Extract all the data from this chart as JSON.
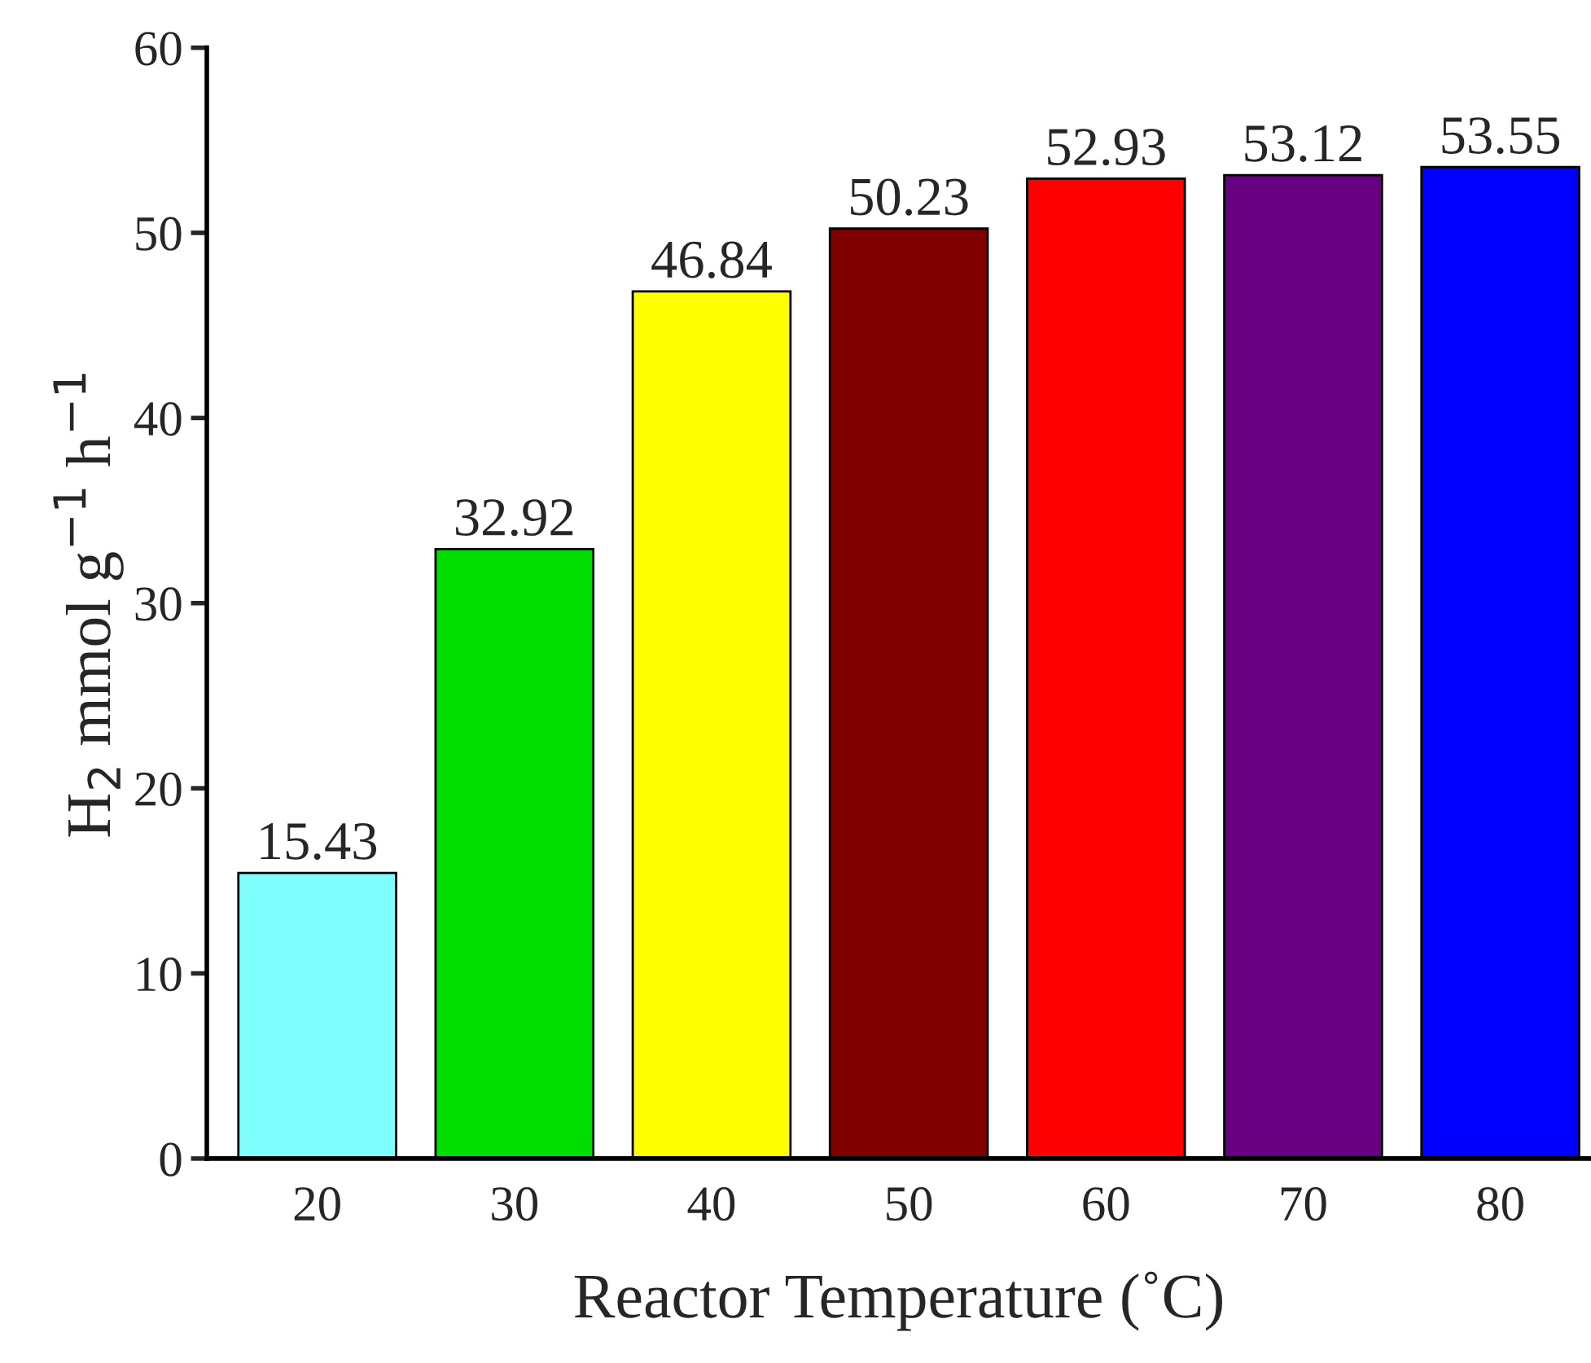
{
  "chart_data": {
    "type": "bar",
    "xlabel": "Reactor Temperature (˚C)",
    "ylabel": "H$_{2}$ mmol g$^{−1}$ h$^{−1}$",
    "categories": [
      "20",
      "30",
      "40",
      "50",
      "60",
      "70",
      "80"
    ],
    "values": [
      15.43,
      32.92,
      46.84,
      50.23,
      52.93,
      53.12,
      53.55
    ],
    "colors": [
      "#80ffff",
      "#00dd00",
      "#ffff00",
      "#800000",
      "#ff0000",
      "#660080",
      "#0000ff"
    ],
    "ylim": [
      0,
      60
    ],
    "yticks": [
      0,
      10,
      20,
      30,
      40,
      50,
      60
    ],
    "data_labels": true,
    "grid": false,
    "legend": false
  }
}
